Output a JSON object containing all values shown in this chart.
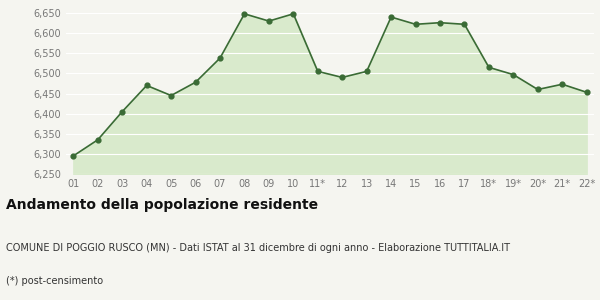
{
  "x_labels": [
    "01",
    "02",
    "03",
    "04",
    "05",
    "06",
    "07",
    "08",
    "09",
    "10",
    "11*",
    "12",
    "13",
    "14",
    "15",
    "16",
    "17",
    "18*",
    "19*",
    "20*",
    "21*",
    "22*"
  ],
  "y_values": [
    6295,
    6335,
    6405,
    6470,
    6445,
    6478,
    6538,
    6648,
    6630,
    6648,
    6505,
    6490,
    6505,
    6640,
    6622,
    6626,
    6622,
    6515,
    6497,
    6460,
    6473,
    6453
  ],
  "line_color": "#3a6b35",
  "fill_color": "#d9eacc",
  "marker_color": "#3a6b35",
  "background_color": "#f5f5f0",
  "grid_color": "#ffffff",
  "ylim": [
    6250,
    6660
  ],
  "yticks": [
    6250,
    6300,
    6350,
    6400,
    6450,
    6500,
    6550,
    6600,
    6650
  ],
  "title": "Andamento della popolazione residente",
  "subtitle": "COMUNE DI POGGIO RUSCO (MN) - Dati ISTAT al 31 dicembre di ogni anno - Elaborazione TUTTITALIA.IT",
  "footnote": "(*) post-censimento",
  "title_fontsize": 10,
  "subtitle_fontsize": 7,
  "footnote_fontsize": 7,
  "tick_fontsize": 7,
  "axis_color": "#777777"
}
